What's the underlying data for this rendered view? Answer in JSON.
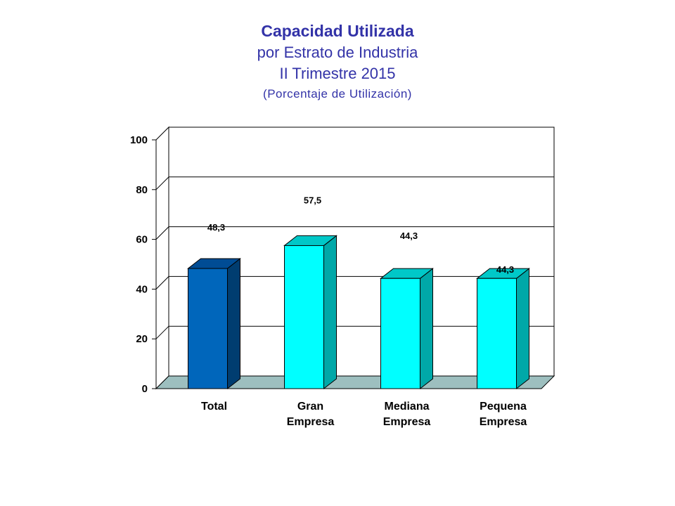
{
  "header": {
    "title": "Capacidad Utilizada",
    "subtitle_1": "por Estrato de Industria",
    "subtitle_2": "II Trimestre 2015",
    "subtitle_3": "(Porcentaje de Utilización)"
  },
  "chart_data": {
    "type": "bar",
    "title": "Capacidad Utilizada",
    "subtitle": "por Estrato de Industria / II Trimestre 2015 / (Porcentaje de Utilización)",
    "categories": [
      [
        "Total"
      ],
      [
        "Gran",
        "Empresa"
      ],
      [
        "Mediana",
        "Empresa"
      ],
      [
        "Pequena",
        "Empresa"
      ]
    ],
    "values": [
      48.3,
      57.5,
      44.3,
      44.3
    ],
    "data_labels": [
      "48,3",
      "57,5",
      "44,3",
      "44,3"
    ],
    "y_ticks": [
      "0",
      "20",
      "40",
      "60",
      "80",
      "100"
    ],
    "ylim": [
      0,
      100
    ],
    "grid": true,
    "legend": "none",
    "colors": {
      "bars_front": [
        "#0066bb",
        "#00ffff",
        "#00ffff",
        "#00ffff"
      ],
      "bars_side": [
        "#003d70",
        "#00a8a8",
        "#00a8a8",
        "#00a8a8"
      ],
      "bars_top": [
        "#004c94",
        "#00c8c8",
        "#00c8c8",
        "#00c8c8"
      ],
      "floor": "#9dbfbf"
    }
  }
}
